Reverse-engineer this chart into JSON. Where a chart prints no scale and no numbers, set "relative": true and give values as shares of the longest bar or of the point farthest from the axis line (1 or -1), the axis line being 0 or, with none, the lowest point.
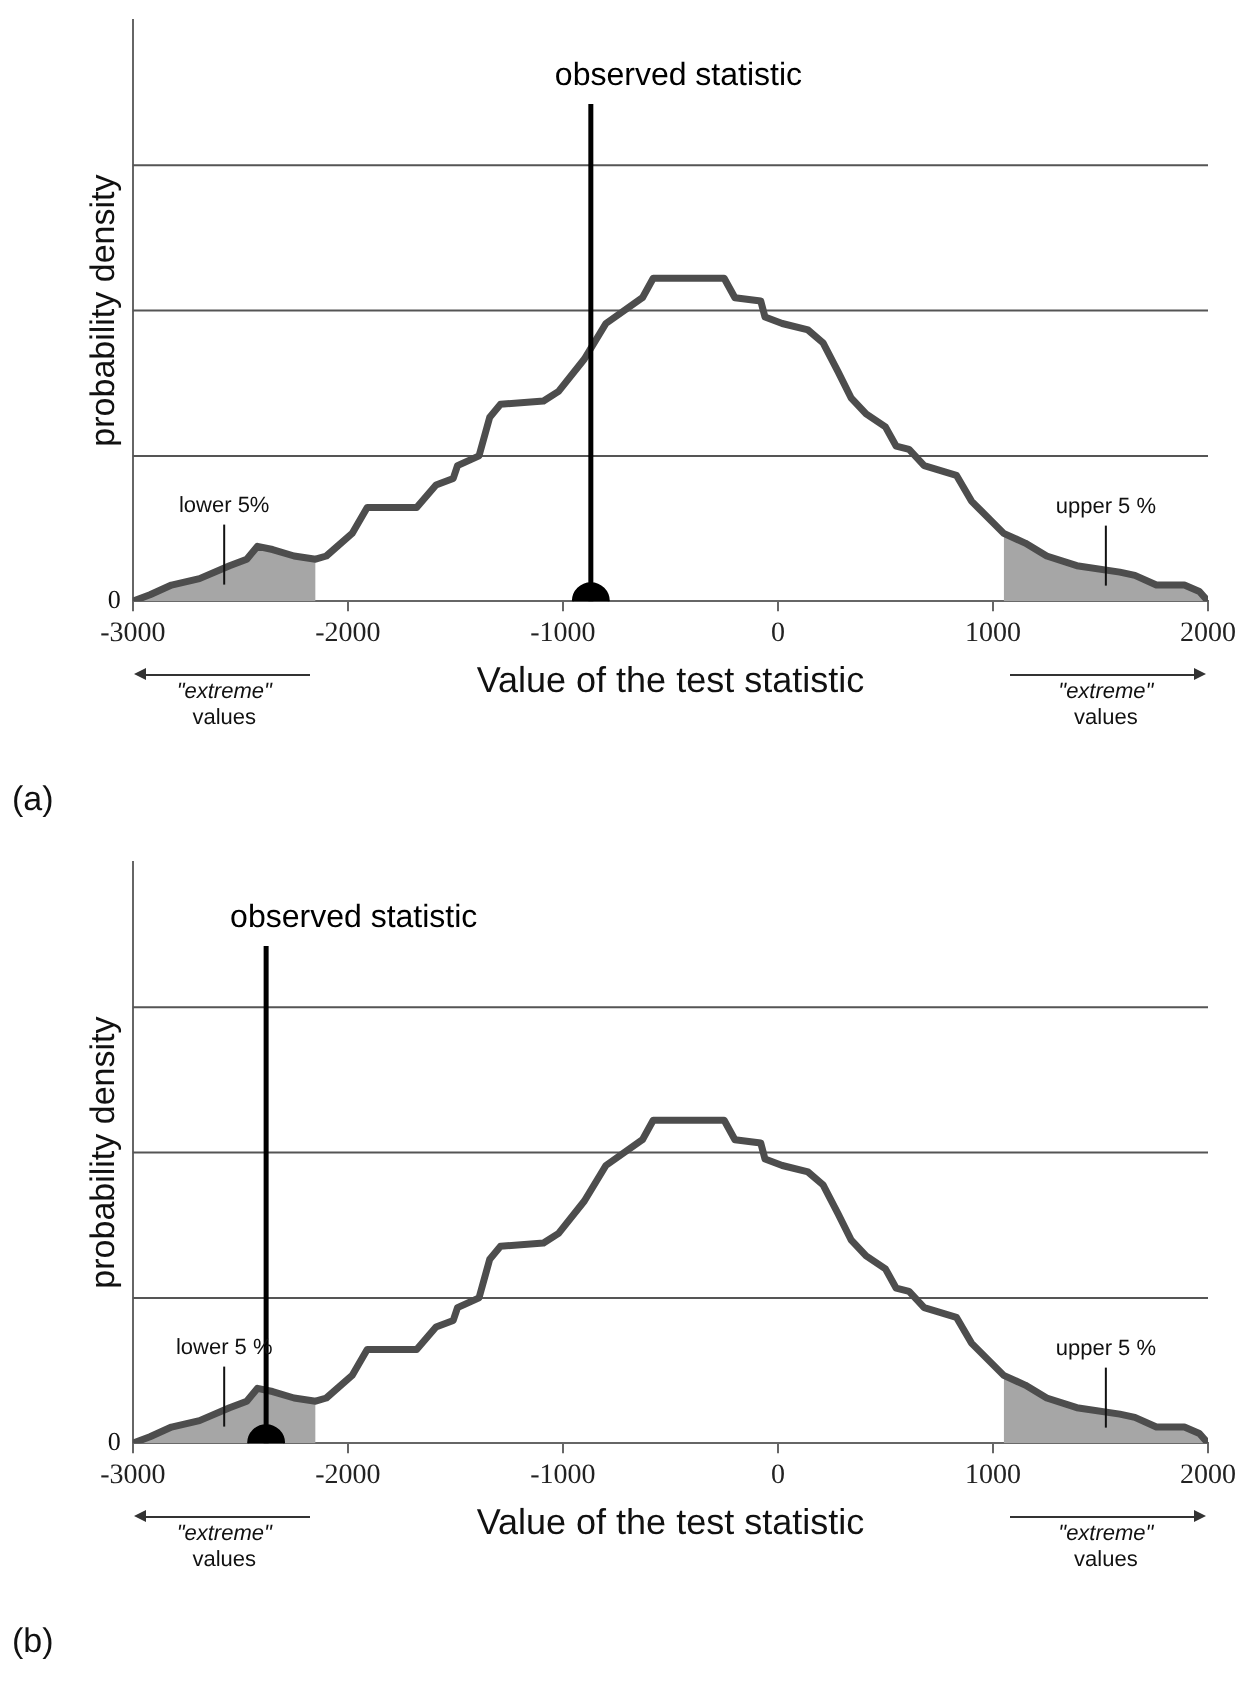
{
  "chart_data": [
    {
      "type": "line",
      "title": "(a)",
      "xlabel": "Value of the test statistic",
      "ylabel": "probability density",
      "relative": true,
      "xlim": [
        -3000,
        2000
      ],
      "xticks": [
        -3000,
        -2000,
        -1000,
        0,
        1000,
        2000
      ],
      "legend": false,
      "marker": "none",
      "series": [
        {
          "type": "area",
          "color": "#a6a6a6",
          "x": [
            -3000,
            -2920,
            -2820,
            -2690,
            -2550,
            -2470,
            -2420,
            -2350,
            -2250,
            -2150
          ],
          "values": [
            0,
            0.02,
            0.05,
            0.07,
            0.11,
            0.13,
            0.17,
            0.16,
            0.14,
            0.13
          ]
        },
        {
          "type": "area",
          "color": "#a6a6a6",
          "x": [
            1050,
            1150,
            1250,
            1390,
            1590,
            1660,
            1760,
            1890,
            1960,
            2000
          ],
          "values": [
            0.21,
            0.18,
            0.14,
            0.11,
            0.09,
            0.08,
            0.05,
            0.05,
            0.03,
            0
          ]
        },
        {
          "type": "line",
          "color": "#4d4d4d",
          "x": [
            -3000,
            -2920,
            -2820,
            -2690,
            -2550,
            -2470,
            -2420,
            -2350,
            -2250,
            -2150,
            -2100,
            -1980,
            -1910,
            -1680,
            -1590,
            -1510,
            -1490,
            -1390,
            -1340,
            -1290,
            -1090,
            -1020,
            -900,
            -800,
            -630,
            -580,
            -250,
            -200,
            -80,
            -60,
            20,
            140,
            210,
            280,
            340,
            410,
            500,
            550,
            610,
            680,
            830,
            900,
            1050,
            1150,
            1250,
            1390,
            1590,
            1660,
            1760,
            1890,
            1960,
            2000
          ],
          "values": [
            0,
            0.02,
            0.05,
            0.07,
            0.11,
            0.13,
            0.17,
            0.16,
            0.14,
            0.13,
            0.14,
            0.21,
            0.29,
            0.29,
            0.36,
            0.38,
            0.42,
            0.45,
            0.57,
            0.61,
            0.62,
            0.65,
            0.75,
            0.86,
            0.94,
            1,
            1,
            0.94,
            0.93,
            0.88,
            0.86,
            0.84,
            0.8,
            0.71,
            0.63,
            0.58,
            0.54,
            0.48,
            0.47,
            0.42,
            0.39,
            0.31,
            0.21,
            0.18,
            0.14,
            0.11,
            0.09,
            0.08,
            0.05,
            0.05,
            0.03,
            0
          ]
        },
        {
          "type": "scatter",
          "color": "#000000",
          "marker": "circle",
          "x": [
            -870
          ],
          "values": [
            0
          ]
        }
      ],
      "ref_lines": [
        {
          "axis": "x",
          "value": -870,
          "label": "observed statistic",
          "color": "#000000"
        },
        {
          "axis": "y",
          "value": 0.45,
          "color": "#555555"
        },
        {
          "axis": "y",
          "value": 0.9,
          "color": "#555555"
        },
        {
          "axis": "y",
          "value": 1.35,
          "color": "#555555"
        }
      ],
      "annotations": [
        "0",
        "lower 5%",
        "upper 5 %",
        "\"extreme\" values",
        "\"extreme\" values"
      ]
    },
    {
      "type": "line",
      "title": "(b)",
      "xlabel": "Value of the test statistic",
      "ylabel": "probability density",
      "relative": true,
      "xlim": [
        -3000,
        2000
      ],
      "xticks": [
        -3000,
        -2000,
        -1000,
        0,
        1000,
        2000
      ],
      "legend": false,
      "marker": "none",
      "series": [
        {
          "type": "area",
          "color": "#a6a6a6",
          "x": [
            -3000,
            -2920,
            -2820,
            -2690,
            -2550,
            -2470,
            -2420,
            -2350,
            -2250,
            -2150
          ],
          "values": [
            0,
            0.02,
            0.05,
            0.07,
            0.11,
            0.13,
            0.17,
            0.16,
            0.14,
            0.13
          ]
        },
        {
          "type": "area",
          "color": "#a6a6a6",
          "x": [
            1050,
            1150,
            1250,
            1390,
            1590,
            1660,
            1760,
            1890,
            1960,
            2000
          ],
          "values": [
            0.21,
            0.18,
            0.14,
            0.11,
            0.09,
            0.08,
            0.05,
            0.05,
            0.03,
            0
          ]
        },
        {
          "type": "line",
          "color": "#4d4d4d",
          "x": [
            -3000,
            -2920,
            -2820,
            -2690,
            -2550,
            -2470,
            -2420,
            -2350,
            -2250,
            -2150,
            -2100,
            -1980,
            -1910,
            -1680,
            -1590,
            -1510,
            -1490,
            -1390,
            -1340,
            -1290,
            -1090,
            -1020,
            -900,
            -800,
            -630,
            -580,
            -250,
            -200,
            -80,
            -60,
            20,
            140,
            210,
            280,
            340,
            410,
            500,
            550,
            610,
            680,
            830,
            900,
            1050,
            1150,
            1250,
            1390,
            1590,
            1660,
            1760,
            1890,
            1960,
            2000
          ],
          "values": [
            0,
            0.02,
            0.05,
            0.07,
            0.11,
            0.13,
            0.17,
            0.16,
            0.14,
            0.13,
            0.14,
            0.21,
            0.29,
            0.29,
            0.36,
            0.38,
            0.42,
            0.45,
            0.57,
            0.61,
            0.62,
            0.65,
            0.75,
            0.86,
            0.94,
            1,
            1,
            0.94,
            0.93,
            0.88,
            0.86,
            0.84,
            0.8,
            0.71,
            0.63,
            0.58,
            0.54,
            0.48,
            0.47,
            0.42,
            0.39,
            0.31,
            0.21,
            0.18,
            0.14,
            0.11,
            0.09,
            0.08,
            0.05,
            0.05,
            0.03,
            0
          ]
        },
        {
          "type": "scatter",
          "color": "#000000",
          "marker": "circle",
          "x": [
            -2380
          ],
          "values": [
            0
          ]
        }
      ],
      "ref_lines": [
        {
          "axis": "x",
          "value": -2380,
          "label": "observed statistic",
          "color": "#000000"
        },
        {
          "axis": "y",
          "value": 0.45,
          "color": "#555555"
        },
        {
          "axis": "y",
          "value": 0.9,
          "color": "#555555"
        },
        {
          "axis": "y",
          "value": 1.35,
          "color": "#555555"
        }
      ],
      "annotations": [
        "0",
        "lower 5 %",
        "upper 5 %",
        "\"extreme\" values",
        "\"extreme\" values"
      ]
    }
  ]
}
